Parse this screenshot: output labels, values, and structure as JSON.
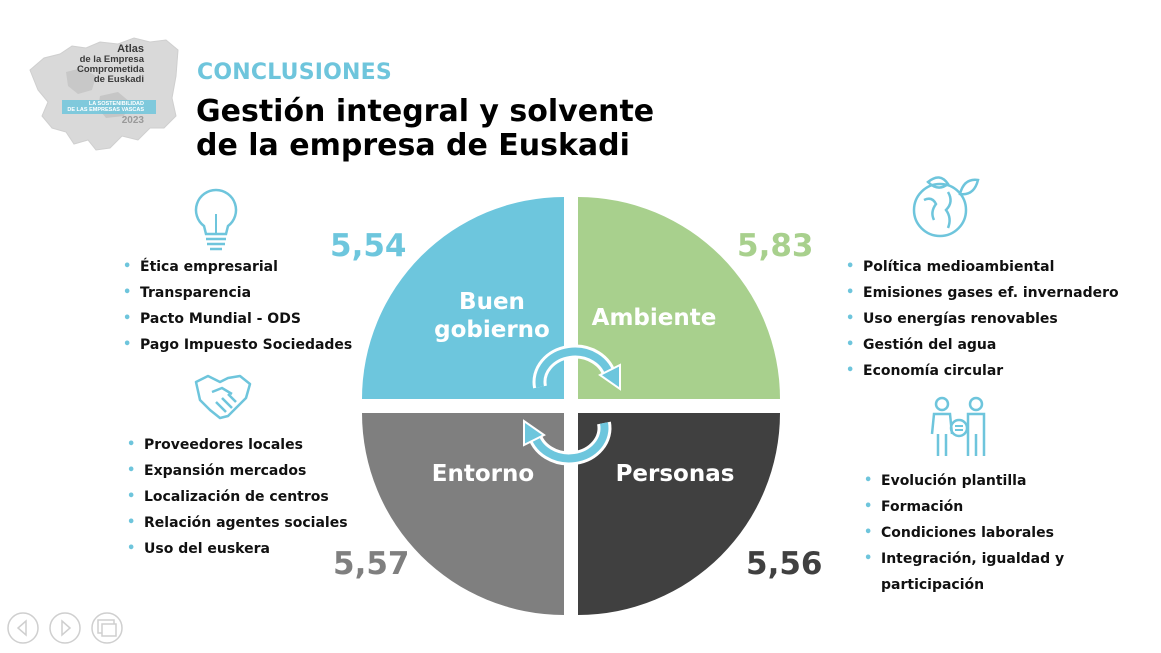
{
  "logo": {
    "lines": [
      "Atlas",
      "de la Empresa",
      "Comprometida",
      "de Euskadi",
      "LA SOSTENIBILIDAD",
      "DE LAS EMPRESAS VASCAS",
      "2023"
    ]
  },
  "header": {
    "section": "CONCLUSIONES",
    "title_line1": "Gestión integral y solvente",
    "title_line2": "de la empresa de Euskadi"
  },
  "quadrants": {
    "buen_gobierno": {
      "label_line1": "Buen",
      "label_line2": "gobierno",
      "score": "5,54",
      "color": "#6dc6dd"
    },
    "ambiente": {
      "label": "Ambiente",
      "score": "5,83",
      "color": "#a8d08d"
    },
    "entorno": {
      "label": "Entorno",
      "score": "5,57",
      "color": "#7f7f7f"
    },
    "personas": {
      "label": "Personas",
      "score": "5,56",
      "color": "#404040"
    }
  },
  "lists": {
    "buen_gobierno": [
      "Ética empresarial",
      "Transparencia",
      "Pacto Mundial - ODS",
      "Pago Impuesto Sociedades"
    ],
    "entorno": [
      "Proveedores locales",
      "Expansión mercados",
      "Localización de centros",
      "Relación agentes sociales",
      "Uso del euskera"
    ],
    "ambiente": [
      "Política medioambiental",
      "Emisiones gases ef. invernadero",
      "Uso energías renovables",
      "Gestión del agua",
      "Economía circular"
    ],
    "personas": [
      "Evolución plantilla",
      "Formación",
      "Condiciones laborales",
      "Integración, igualdad y",
      "participación"
    ]
  },
  "icons": {
    "buen_gobierno": "lightbulb-icon",
    "entorno": "handshake-icon",
    "ambiente": "globe-leaves-icon",
    "personas": "people-equality-icon"
  }
}
